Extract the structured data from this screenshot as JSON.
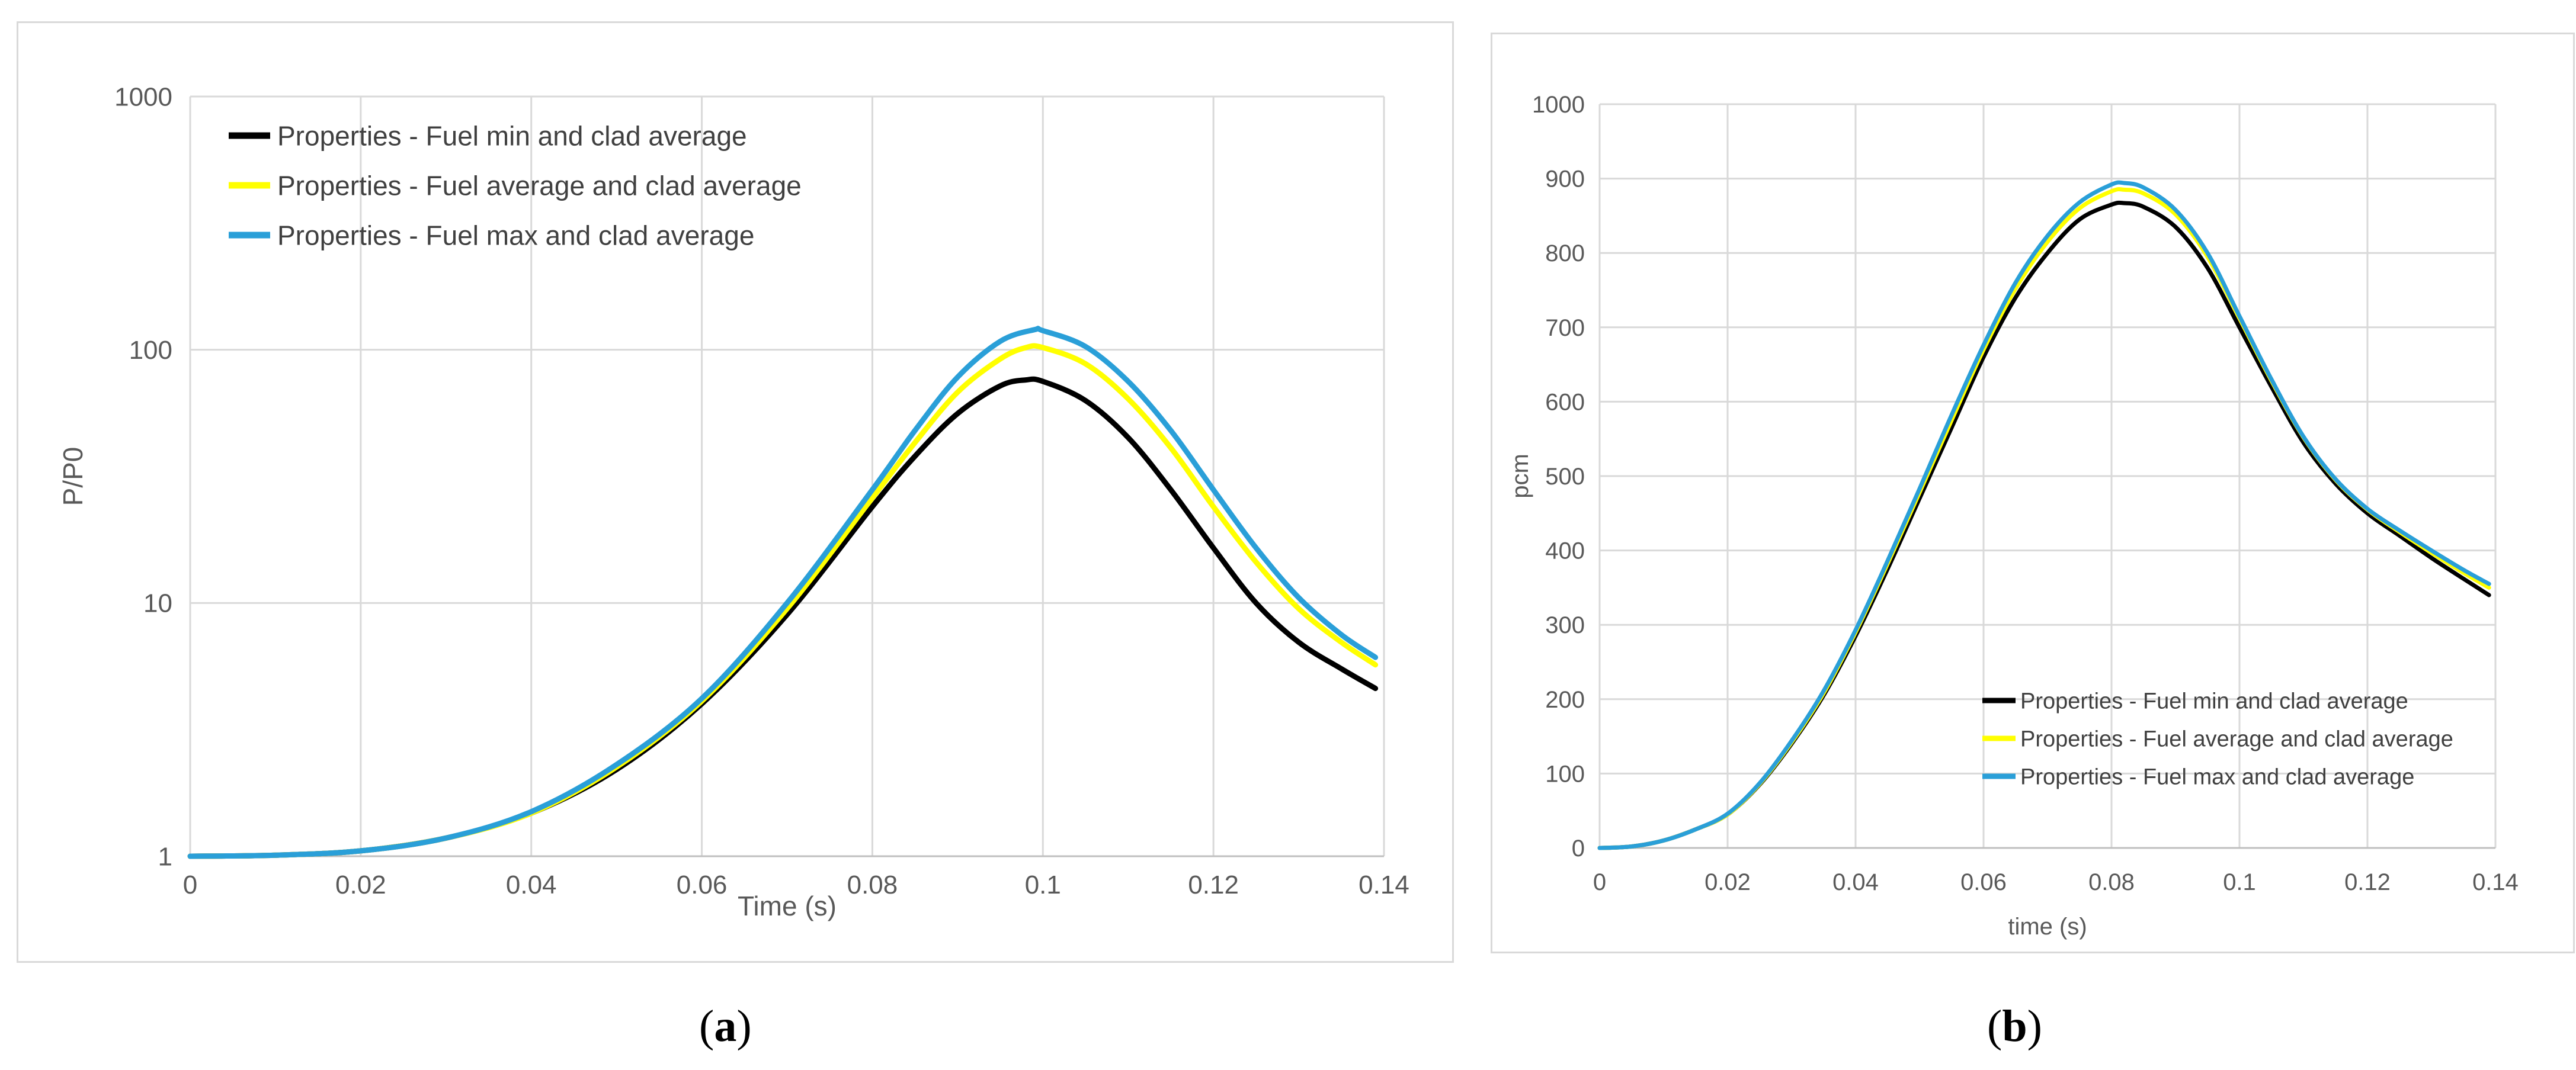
{
  "chart_data": [
    {
      "type": "line",
      "panel_label": "a",
      "xlabel": "Time (s)",
      "ylabel": "P/P0",
      "yscale": "log",
      "xlim": [
        0,
        0.14
      ],
      "ylim": [
        1,
        1000
      ],
      "x_ticks": [
        "0",
        "0.02",
        "0.04",
        "0.06",
        "0.08",
        "0.1",
        "0.12",
        "0.14"
      ],
      "y_ticks": [
        "1",
        "10",
        "100",
        "1000"
      ],
      "legend_position": "top-left",
      "series": [
        {
          "name": "Properties - Fuel min and clad average",
          "color": "#000000",
          "x": [
            0,
            0.01,
            0.02,
            0.03,
            0.04,
            0.05,
            0.06,
            0.07,
            0.08,
            0.085,
            0.09,
            0.095,
            0.098,
            0.1,
            0.105,
            0.11,
            0.115,
            0.12,
            0.125,
            0.13,
            0.135,
            0.139
          ],
          "y": [
            1,
            1.01,
            1.05,
            1.18,
            1.48,
            2.2,
            4.0,
            9.0,
            24,
            38,
            56,
            72,
            76,
            75,
            63,
            45,
            28,
            16.5,
            10,
            7,
            5.5,
            4.6
          ]
        },
        {
          "name": "Properties - Fuel average and clad average",
          "color": "#ffff00",
          "x": [
            0,
            0.01,
            0.02,
            0.03,
            0.04,
            0.05,
            0.06,
            0.07,
            0.08,
            0.085,
            0.09,
            0.095,
            0.098,
            0.1,
            0.105,
            0.11,
            0.115,
            0.12,
            0.125,
            0.13,
            0.135,
            0.139
          ],
          "y": [
            1,
            1.01,
            1.05,
            1.18,
            1.48,
            2.25,
            4.1,
            9.5,
            26,
            43,
            68,
            92,
            102,
            102,
            88,
            64,
            41,
            24,
            14.5,
            9.5,
            7,
            5.7
          ]
        },
        {
          "name": "Properties - Fuel max and clad average",
          "color": "#2a9fd8",
          "x": [
            0,
            0.01,
            0.02,
            0.03,
            0.04,
            0.05,
            0.06,
            0.07,
            0.08,
            0.085,
            0.09,
            0.095,
            0.099,
            0.1,
            0.105,
            0.11,
            0.115,
            0.12,
            0.125,
            0.13,
            0.135,
            0.139
          ],
          "y": [
            1,
            1.01,
            1.05,
            1.18,
            1.5,
            2.3,
            4.2,
            10,
            28,
            48,
            78,
            108,
            120,
            119,
            103,
            75,
            48,
            28,
            16.5,
            10.5,
            7.5,
            6.1
          ]
        }
      ]
    },
    {
      "type": "line",
      "panel_label": "b",
      "xlabel": "time (s)",
      "ylabel": "pcm",
      "yscale": "linear",
      "xlim": [
        0,
        0.14
      ],
      "ylim": [
        0,
        1000
      ],
      "x_ticks": [
        "0",
        "0.02",
        "0.04",
        "0.06",
        "0.08",
        "0.1",
        "0.12",
        "0.14"
      ],
      "y_ticks": [
        "0",
        "100",
        "200",
        "300",
        "400",
        "500",
        "600",
        "700",
        "800",
        "900",
        "1000"
      ],
      "legend_position": "bottom-right",
      "series": [
        {
          "name": "Properties - Fuel min and clad average",
          "color": "#000000",
          "x": [
            0,
            0.005,
            0.01,
            0.015,
            0.02,
            0.025,
            0.03,
            0.035,
            0.04,
            0.045,
            0.05,
            0.055,
            0.06,
            0.065,
            0.07,
            0.075,
            0.08,
            0.082,
            0.085,
            0.09,
            0.095,
            0.1,
            0.105,
            0.11,
            0.115,
            0.12,
            0.125,
            0.13,
            0.135,
            0.139
          ],
          "y": [
            0,
            2,
            10,
            25,
            45,
            85,
            140,
            205,
            285,
            375,
            470,
            565,
            660,
            740,
            800,
            845,
            865,
            867,
            862,
            835,
            780,
            700,
            620,
            545,
            490,
            450,
            420,
            390,
            362,
            340
          ]
        },
        {
          "name": "Properties - Fuel average and clad average",
          "color": "#ffff00",
          "x": [
            0,
            0.005,
            0.01,
            0.015,
            0.02,
            0.025,
            0.03,
            0.035,
            0.04,
            0.045,
            0.05,
            0.055,
            0.06,
            0.065,
            0.07,
            0.075,
            0.08,
            0.082,
            0.085,
            0.09,
            0.095,
            0.1,
            0.105,
            0.11,
            0.115,
            0.12,
            0.125,
            0.13,
            0.135,
            0.139
          ],
          "y": [
            0,
            2,
            10,
            25,
            45,
            86,
            142,
            208,
            290,
            382,
            478,
            575,
            670,
            752,
            815,
            860,
            883,
            885,
            880,
            852,
            795,
            712,
            628,
            552,
            495,
            455,
            425,
            397,
            370,
            350
          ]
        },
        {
          "name": "Properties - Fuel max and clad average",
          "color": "#2a9fd8",
          "x": [
            0,
            0.005,
            0.01,
            0.015,
            0.02,
            0.025,
            0.03,
            0.035,
            0.04,
            0.045,
            0.05,
            0.055,
            0.06,
            0.065,
            0.07,
            0.075,
            0.08,
            0.082,
            0.085,
            0.09,
            0.095,
            0.1,
            0.105,
            0.11,
            0.115,
            0.12,
            0.125,
            0.13,
            0.135,
            0.139
          ],
          "y": [
            0,
            2,
            10,
            25,
            46,
            87,
            144,
            211,
            293,
            386,
            483,
            582,
            676,
            760,
            823,
            868,
            892,
            894,
            888,
            858,
            800,
            715,
            630,
            553,
            496,
            456,
            427,
            400,
            374,
            355
          ]
        }
      ]
    }
  ],
  "captions": [
    "a",
    "b"
  ],
  "caption_parens": {
    "open": "(",
    "close": ")"
  }
}
